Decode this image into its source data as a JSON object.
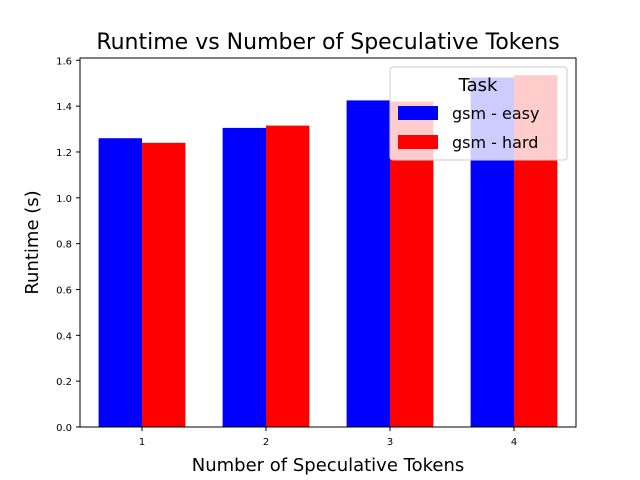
{
  "chart_data": {
    "type": "bar",
    "title": "Runtime vs Number of Speculative Tokens",
    "xlabel": "Number of Speculative Tokens",
    "ylabel": "Runtime (s)",
    "categories": [
      "1",
      "2",
      "3",
      "4"
    ],
    "series": [
      {
        "name": "gsm - easy",
        "color": "#0000ff",
        "values": [
          1.26,
          1.305,
          1.425,
          1.525
        ]
      },
      {
        "name": "gsm - hard",
        "color": "#ff0000",
        "values": [
          1.24,
          1.315,
          1.42,
          1.535
        ]
      }
    ],
    "ylim": [
      0,
      1.61
    ],
    "yticks": [
      "0.0",
      "0.2",
      "0.4",
      "0.6",
      "0.8",
      "1.0",
      "1.2",
      "1.4",
      "1.6"
    ],
    "grid": false,
    "legend": {
      "title": "Task",
      "placement": "top-right"
    }
  }
}
